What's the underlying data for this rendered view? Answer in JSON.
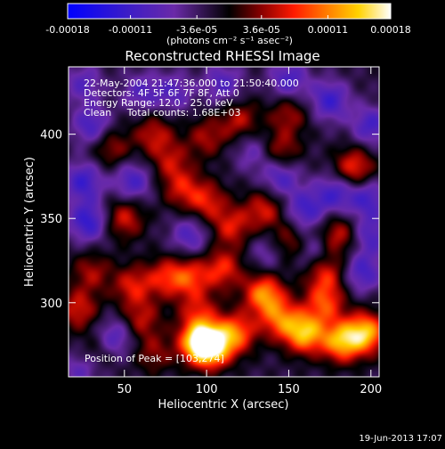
{
  "colorbar": {
    "tick_labels": [
      "-0.00018",
      "-0.00011",
      "-3.6e-05",
      "3.6e-05",
      "0.00011",
      "0.00018"
    ],
    "tick_values": [
      -0.00018,
      -0.00011,
      -3.6e-05,
      3.6e-05,
      0.00011,
      0.00018
    ],
    "range": [
      -0.00018,
      0.00018
    ],
    "unit_label": "(photons cm⁻² s⁻¹ asec⁻²)"
  },
  "footer": {
    "timestamp": "19-Jun-2013 17:07"
  },
  "chart_data": {
    "type": "heatmap",
    "title": "Reconstructed RHESSI Image",
    "xlabel": "Heliocentric X (arcsec)",
    "ylabel": "Heliocentric Y (arcsec)",
    "xlim": [
      16,
      205
    ],
    "ylim": [
      256,
      440
    ],
    "x_ticks": [
      50,
      100,
      150,
      200
    ],
    "y_ticks": [
      300,
      350,
      400
    ],
    "x_tick_labels": [
      "50",
      "100",
      "150",
      "200"
    ],
    "y_tick_labels": [
      "300",
      "350",
      "400"
    ],
    "colormap": "RHESSI blue-purple-black-red-yellow-white",
    "annotations": [
      "22-May-2004 21:47:36.000 to 21:50:40.000",
      "Detectors: 4F 5F 6F 7F 8F, Att 0",
      "Energy Range: 12.0 - 25.0 keV",
      "Clean     Total counts: 1.68E+03"
    ],
    "peak_label": "Position of Peak = [103,274]",
    "peak_position": [
      103,
      274
    ],
    "blobs": [
      {
        "x": 103,
        "y": 274,
        "amp": 1.0
      },
      {
        "x": 95,
        "y": 277,
        "amp": 0.85
      },
      {
        "x": 118,
        "y": 282,
        "amp": 0.65
      },
      {
        "x": 135,
        "y": 305,
        "amp": 0.75
      },
      {
        "x": 145,
        "y": 290,
        "amp": 0.6
      },
      {
        "x": 160,
        "y": 282,
        "amp": 0.85
      },
      {
        "x": 182,
        "y": 277,
        "amp": 0.8
      },
      {
        "x": 197,
        "y": 282,
        "amp": 0.85
      },
      {
        "x": 172,
        "y": 300,
        "amp": 0.55
      },
      {
        "x": 172,
        "y": 318,
        "amp": 0.5
      },
      {
        "x": 180,
        "y": 340,
        "amp": 0.45
      },
      {
        "x": 190,
        "y": 380,
        "amp": 0.55
      },
      {
        "x": 110,
        "y": 320,
        "amp": 0.5
      },
      {
        "x": 90,
        "y": 315,
        "amp": 0.5
      },
      {
        "x": 75,
        "y": 315,
        "amp": 0.45
      },
      {
        "x": 55,
        "y": 310,
        "amp": 0.45
      },
      {
        "x": 30,
        "y": 318,
        "amp": 0.35
      },
      {
        "x": 22,
        "y": 296,
        "amp": 0.45
      },
      {
        "x": 60,
        "y": 290,
        "amp": 0.4
      },
      {
        "x": 95,
        "y": 295,
        "amp": 0.4
      },
      {
        "x": 115,
        "y": 345,
        "amp": 0.45
      },
      {
        "x": 100,
        "y": 360,
        "amp": 0.45
      },
      {
        "x": 85,
        "y": 368,
        "amp": 0.4
      },
      {
        "x": 50,
        "y": 350,
        "amp": 0.45
      },
      {
        "x": 135,
        "y": 355,
        "amp": 0.45
      },
      {
        "x": 150,
        "y": 335,
        "amp": 0.4
      },
      {
        "x": 68,
        "y": 400,
        "amp": 0.4
      },
      {
        "x": 42,
        "y": 392,
        "amp": 0.35
      },
      {
        "x": 78,
        "y": 384,
        "amp": 0.35
      },
      {
        "x": 120,
        "y": 408,
        "amp": 0.4
      },
      {
        "x": 100,
        "y": 398,
        "amp": 0.35
      },
      {
        "x": 145,
        "y": 390,
        "amp": 0.4
      },
      {
        "x": 150,
        "y": 412,
        "amp": 0.35
      },
      {
        "x": 30,
        "y": 268,
        "amp": 0.3
      },
      {
        "x": 68,
        "y": 270,
        "amp": 0.3
      },
      {
        "x": 90,
        "y": 340,
        "amp": -0.4
      },
      {
        "x": 160,
        "y": 355,
        "amp": -0.45
      },
      {
        "x": 178,
        "y": 365,
        "amp": -0.45
      },
      {
        "x": 198,
        "y": 362,
        "amp": -0.45
      },
      {
        "x": 200,
        "y": 405,
        "amp": -0.45
      },
      {
        "x": 175,
        "y": 420,
        "amp": -0.5
      },
      {
        "x": 150,
        "y": 432,
        "amp": -0.45
      },
      {
        "x": 110,
        "y": 430,
        "amp": -0.4
      },
      {
        "x": 60,
        "y": 425,
        "amp": -0.35
      },
      {
        "x": 25,
        "y": 430,
        "amp": -0.35
      },
      {
        "x": 25,
        "y": 372,
        "amp": -0.5
      },
      {
        "x": 28,
        "y": 348,
        "amp": -0.55
      },
      {
        "x": 55,
        "y": 372,
        "amp": -0.45
      },
      {
        "x": 30,
        "y": 405,
        "amp": -0.45
      },
      {
        "x": 45,
        "y": 280,
        "amp": -0.4
      },
      {
        "x": 25,
        "y": 262,
        "amp": -0.45
      },
      {
        "x": 145,
        "y": 375,
        "amp": -0.45
      },
      {
        "x": 165,
        "y": 330,
        "amp": -0.35
      },
      {
        "x": 195,
        "y": 318,
        "amp": -0.45
      },
      {
        "x": 200,
        "y": 340,
        "amp": -0.4
      },
      {
        "x": 138,
        "y": 330,
        "amp": -0.3
      },
      {
        "x": 128,
        "y": 390,
        "amp": -0.3
      },
      {
        "x": 80,
        "y": 425,
        "amp": -0.35
      }
    ]
  }
}
